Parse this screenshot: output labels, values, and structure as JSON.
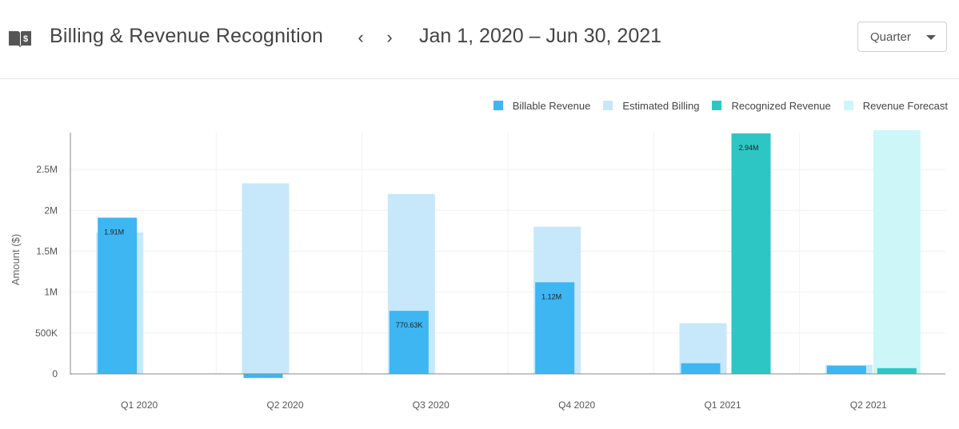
{
  "header": {
    "title": "Billing & Revenue Recognition",
    "prev": "‹",
    "next": "›",
    "date_range": "Jan 1, 2020 – Jun 30, 2021",
    "period": "Quarter"
  },
  "colors": {
    "billable": "#3db6f2",
    "estimated": "#c6e8fa",
    "recognized": "#2ec6c4",
    "forecast": "#cdf6f8"
  },
  "chart_data": {
    "type": "bar",
    "title": "",
    "xlabel": "",
    "ylabel": "Amount ($)",
    "ylim": [
      0,
      2950000
    ],
    "y_ticks": [
      {
        "value": 0,
        "label": "0"
      },
      {
        "value": 500000,
        "label": "500K"
      },
      {
        "value": 1000000,
        "label": "1M"
      },
      {
        "value": 1500000,
        "label": "1.5M"
      },
      {
        "value": 2000000,
        "label": "2M"
      },
      {
        "value": 2500000,
        "label": "2.5M"
      }
    ],
    "legend_position": "top-right",
    "categories": [
      "Q1 2020",
      "Q2 2020",
      "Q3 2020",
      "Q4 2020",
      "Q1 2021",
      "Q2 2021"
    ],
    "series": [
      {
        "name": "Billable Revenue",
        "color": "#3db6f2",
        "values": [
          1910000,
          -50000,
          770630,
          1120000,
          130000,
          100000
        ],
        "labels": [
          "1.91M",
          "",
          "770.63K",
          "1.12M",
          "",
          ""
        ]
      },
      {
        "name": "Estimated Billing",
        "color": "#c6e8fa",
        "values": [
          1730000,
          2330000,
          2200000,
          1800000,
          620000,
          110000
        ]
      },
      {
        "name": "Recognized Revenue",
        "color": "#2ec6c4",
        "values": [
          0,
          0,
          0,
          0,
          2940000,
          70000
        ],
        "labels": [
          "",
          "",
          "",
          "",
          "2.94M",
          ""
        ]
      },
      {
        "name": "Revenue Forecast",
        "color": "#cdf6f8",
        "values": [
          0,
          0,
          0,
          0,
          0,
          2980000
        ]
      }
    ]
  }
}
